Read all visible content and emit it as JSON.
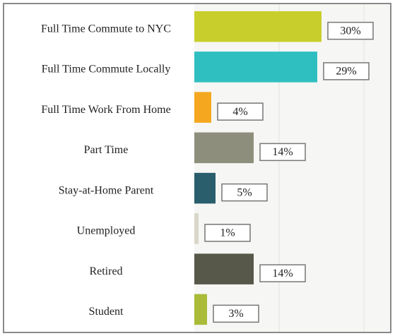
{
  "chart_data": {
    "type": "bar",
    "orientation": "horizontal",
    "categories": [
      "Full Time Commute to NYC",
      "Full Time Commute Locally",
      "Full Time Work From Home",
      "Part Time",
      "Stay-at-Home Parent",
      "Unemployed",
      "Retired",
      "Student"
    ],
    "values": [
      30,
      29,
      4,
      14,
      5,
      1,
      14,
      3
    ],
    "value_labels": [
      "30%",
      "29%",
      "4%",
      "14%",
      "5%",
      "1%",
      "14%",
      "3%"
    ],
    "colors": [
      "#c8cf2c",
      "#2fbfc1",
      "#f5a81f",
      "#8e8e7c",
      "#2a5e6d",
      "#d9d7c9",
      "#58584a",
      "#a9bb38"
    ],
    "xlim": [
      0,
      46
    ],
    "xticks": [
      20,
      40
    ],
    "grid": true
  }
}
